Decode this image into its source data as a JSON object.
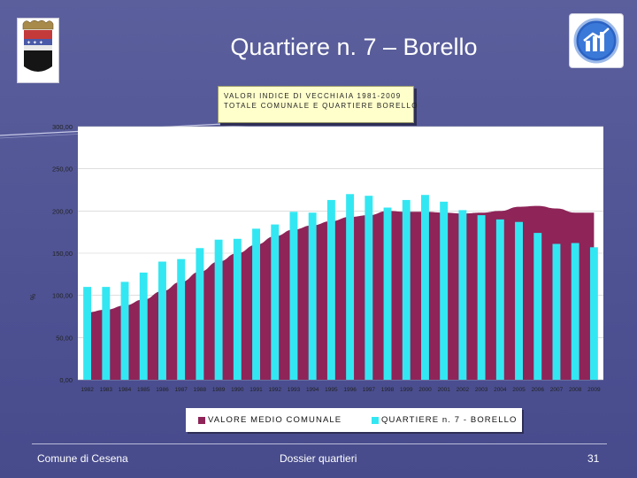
{
  "slide": {
    "title": "Quartiere n. 7 – Borello"
  },
  "footer": {
    "left": "Comune di Cesena",
    "center": "Dossier quartieri",
    "page": "31"
  },
  "colors": {
    "background": "#4e5293",
    "area_comunale": "#8e2458",
    "bars_quartiere": "#33e7f2",
    "plot_background": "#ffffff",
    "caption_background": "#ffffcc"
  },
  "chart_data": {
    "type": "bar",
    "title_lines": [
      "VALORI INDICE DI VECCHIAIA 1981-2009",
      "TOTALE COMUNALE E QUARTIERE BORELLO"
    ],
    "ylabel": "%",
    "xlabel": "",
    "ylim": [
      0,
      300
    ],
    "yticks": [
      "0,00",
      "50,00",
      "100,00",
      "150,00",
      "200,00",
      "250,00",
      "300,00"
    ],
    "grid": true,
    "legend_position": "bottom",
    "categories": [
      "1982",
      "1983",
      "1984",
      "1985",
      "1986",
      "1987",
      "1988",
      "1989",
      "1990",
      "1991",
      "1992",
      "1993",
      "1994",
      "1995",
      "1996",
      "1997",
      "1998",
      "1999",
      "2000",
      "2001",
      "2002",
      "2003",
      "2004",
      "2005",
      "2006",
      "2007",
      "2008",
      "2009"
    ],
    "series": [
      {
        "name": "VALORE MEDIO COMUNALE",
        "kind": "area",
        "color": "#8e2458",
        "values": [
          80,
          83,
          88,
          95,
          105,
          116,
          128,
          140,
          150,
          160,
          170,
          178,
          183,
          188,
          193,
          195,
          200,
          199,
          199,
          198,
          197,
          198,
          200,
          205,
          206,
          203,
          198,
          198
        ]
      },
      {
        "name": "QUARTIERE n. 7 - BORELLO",
        "kind": "bar",
        "color": "#33e7f2",
        "values": [
          110,
          110,
          116,
          127,
          140,
          143,
          156,
          166,
          167,
          179,
          184,
          199,
          198,
          213,
          220,
          218,
          204,
          213,
          219,
          211,
          201,
          195,
          190,
          187,
          174,
          161,
          162,
          157
        ]
      }
    ]
  }
}
